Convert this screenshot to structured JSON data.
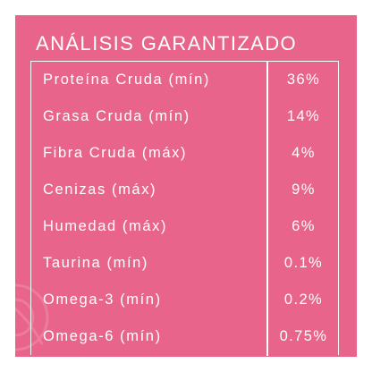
{
  "title": "ANÁLISIS GARANTIZADO",
  "rows": [
    {
      "label": "Proteína Cruda (mín)",
      "value": "36%"
    },
    {
      "label": "Grasa Cruda (mín)",
      "value": "14%"
    },
    {
      "label": "Fibra Cruda (máx)",
      "value": "4%"
    },
    {
      "label": "Cenizas (máx)",
      "value": "9%"
    },
    {
      "label": "Humedad (máx)",
      "value": "6%"
    },
    {
      "label": "Taurina (mín)",
      "value": "0.1%"
    },
    {
      "label": "Omega-3 (mín)",
      "value": "0.2%"
    },
    {
      "label": "Omega-6 (mín)",
      "value": "0.75%"
    }
  ],
  "colors": {
    "background": "#e8648a",
    "text": "#ffffff"
  }
}
